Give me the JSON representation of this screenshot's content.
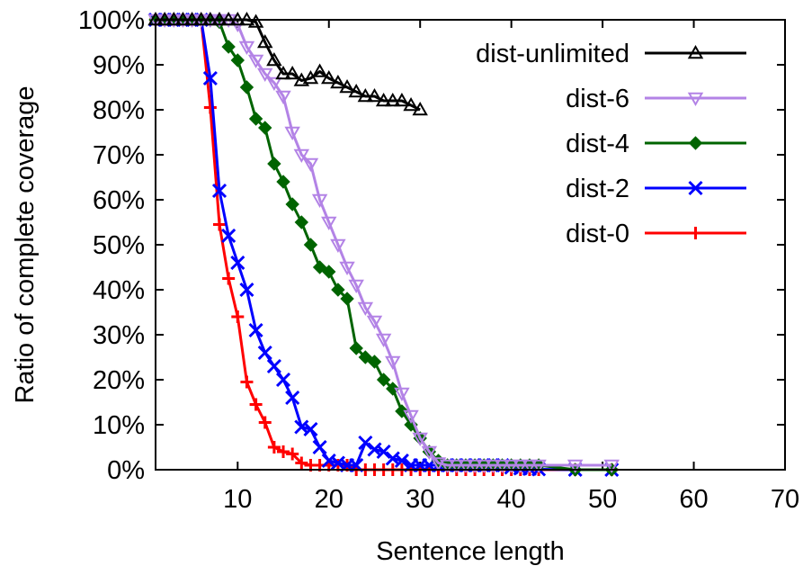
{
  "chart_data": {
    "type": "line",
    "title": "",
    "xlabel": "Sentence length",
    "ylabel": "Ratio of complete coverage",
    "xlim": [
      1,
      70
    ],
    "ylim": [
      0,
      100
    ],
    "xticks": [
      10,
      20,
      30,
      40,
      50,
      60,
      70
    ],
    "yticks": [
      0,
      10,
      20,
      30,
      40,
      50,
      60,
      70,
      80,
      90,
      100
    ],
    "xtick_labels": [
      "10",
      "20",
      "30",
      "40",
      "50",
      "60",
      "70"
    ],
    "ytick_labels": [
      "0%",
      "10%",
      "20%",
      "30%",
      "40%",
      "50%",
      "60%",
      "70%",
      "80%",
      "90%",
      "100%"
    ],
    "grid": false,
    "legend_position": "top-right",
    "series": [
      {
        "name": "dist-unlimited",
        "color": "#000000",
        "marker": "triangle-up-open",
        "x": [
          1,
          2,
          3,
          4,
          5,
          6,
          7,
          8,
          9,
          10,
          11,
          12,
          13,
          14,
          15,
          16,
          17,
          18,
          19,
          20,
          21,
          22,
          23,
          24,
          25,
          26,
          27,
          28,
          29,
          30
        ],
        "y": [
          100,
          100,
          100,
          100,
          100,
          100,
          100,
          100,
          100,
          100,
          100,
          99.5,
          95,
          91,
          88,
          88,
          86.5,
          87,
          88.5,
          87,
          86,
          85,
          84,
          83,
          83,
          82,
          82,
          82,
          81,
          80
        ]
      },
      {
        "name": "dist-6",
        "color": "#b383e6",
        "marker": "triangle-down-open",
        "x": [
          1,
          2,
          3,
          4,
          5,
          6,
          7,
          8,
          9,
          10,
          11,
          12,
          13,
          14,
          15,
          16,
          17,
          18,
          19,
          20,
          21,
          22,
          23,
          24,
          25,
          26,
          27,
          28,
          29,
          30,
          31,
          32,
          33,
          34,
          35,
          36,
          37,
          38,
          39,
          40,
          41,
          42,
          43,
          47,
          51
        ],
        "y": [
          100,
          100,
          100,
          100,
          100,
          100,
          100,
          100,
          100,
          99,
          94,
          91,
          88,
          86,
          83,
          75,
          70,
          68,
          60,
          55,
          50,
          45,
          41,
          36,
          33,
          29,
          24,
          17,
          12,
          7,
          4,
          1.5,
          1,
          1,
          1,
          1,
          1,
          1,
          1,
          1,
          1,
          1,
          1,
          1,
          1
        ]
      },
      {
        "name": "dist-4",
        "color": "#006400",
        "marker": "diamond-filled",
        "x": [
          1,
          2,
          3,
          4,
          5,
          6,
          7,
          8,
          9,
          10,
          11,
          12,
          13,
          14,
          15,
          16,
          17,
          18,
          19,
          20,
          21,
          22,
          23,
          24,
          25,
          26,
          27,
          28,
          29,
          30,
          31,
          32,
          33,
          34,
          35,
          36,
          37,
          38,
          39,
          40,
          41,
          42,
          43,
          47,
          51
        ],
        "y": [
          100,
          100,
          100,
          100,
          100,
          100,
          100,
          99.5,
          94,
          91,
          85,
          78,
          76,
          68,
          64,
          59,
          55,
          50,
          45,
          44,
          40,
          38,
          27,
          25,
          24,
          20,
          18,
          13,
          10,
          7,
          4,
          2,
          1,
          1,
          1,
          1,
          1,
          1,
          1,
          1,
          1,
          1,
          1,
          0,
          0
        ]
      },
      {
        "name": "dist-2",
        "color": "#0000ff",
        "marker": "cross",
        "x": [
          1,
          2,
          3,
          4,
          5,
          6,
          7,
          8,
          9,
          10,
          11,
          12,
          13,
          14,
          15,
          16,
          17,
          18,
          19,
          20,
          21,
          22,
          23,
          24,
          25,
          26,
          27,
          28,
          29,
          30,
          31,
          32,
          33,
          34,
          35,
          36,
          37,
          38,
          39,
          40,
          41,
          42,
          43,
          47,
          51
        ],
        "y": [
          100,
          100,
          100,
          100,
          100,
          100,
          87,
          62,
          52,
          46,
          40,
          31,
          26,
          23,
          20,
          16,
          9.5,
          9,
          5,
          2,
          1.5,
          1,
          1,
          6,
          4.5,
          4,
          2.5,
          2,
          1,
          1,
          1,
          1,
          1,
          1,
          1,
          1,
          1,
          1,
          1,
          0.5,
          0.3,
          0.2,
          0.1,
          0,
          0
        ]
      },
      {
        "name": "dist-0",
        "color": "#ff0000",
        "marker": "plus",
        "x": [
          1,
          2,
          3,
          4,
          5,
          6,
          7,
          8,
          9,
          10,
          11,
          12,
          13,
          14,
          15,
          16,
          17,
          18,
          19,
          20,
          21,
          22,
          23,
          24,
          25,
          26,
          27,
          28,
          29,
          30,
          31,
          32,
          33,
          34,
          35,
          36,
          37,
          38,
          39,
          40,
          41,
          42,
          43,
          47,
          51
        ],
        "y": [
          100,
          100,
          100,
          100,
          100,
          100,
          80.5,
          54.5,
          42.5,
          34,
          19.5,
          14.5,
          10.5,
          5,
          4,
          3.5,
          1.5,
          1,
          1,
          1,
          1,
          1,
          0,
          0,
          0,
          0,
          0,
          0,
          0,
          0,
          0,
          0,
          0,
          0,
          0,
          0,
          0,
          0,
          0,
          0,
          0,
          0,
          0,
          0,
          0
        ]
      }
    ]
  }
}
